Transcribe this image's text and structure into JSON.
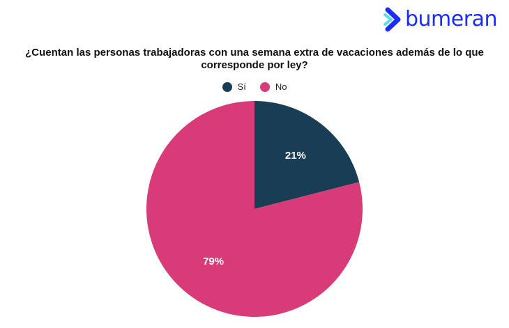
{
  "brand": {
    "name": "bumeran",
    "color": "#1a2dff"
  },
  "chart_data": {
    "type": "pie",
    "title": "¿Cuentan las personas trabajadoras con una semana extra de vacaciones además de lo que corresponde por ley?",
    "legend_position": "top",
    "categories": [
      "Sí",
      "No"
    ],
    "values": [
      21,
      79
    ],
    "labels": [
      "21%",
      "79%"
    ],
    "colors": [
      "#183d54",
      "#d83b77"
    ]
  }
}
